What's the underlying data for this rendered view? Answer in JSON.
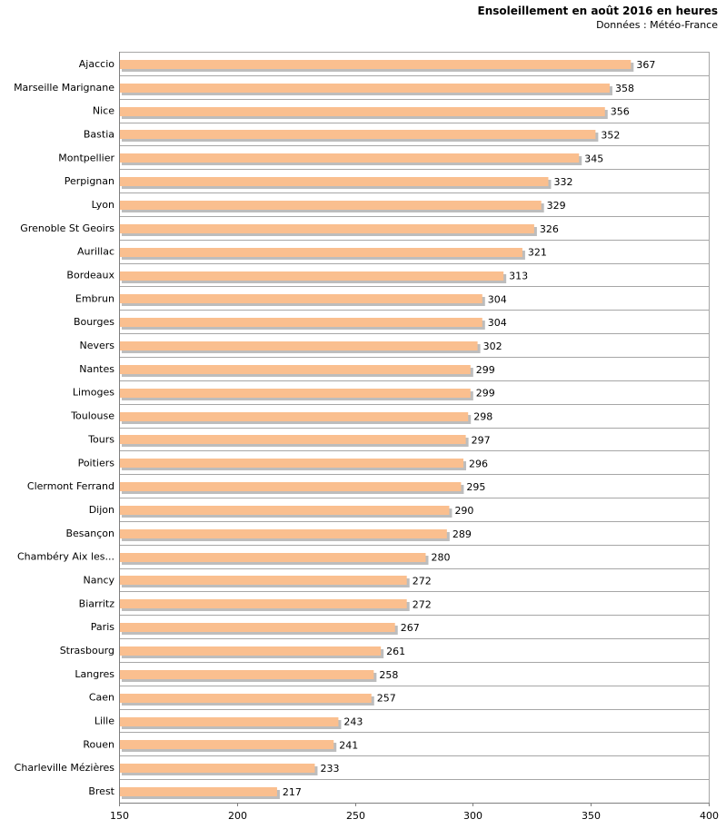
{
  "chart_data": {
    "type": "bar",
    "orientation": "horizontal",
    "title": "Ensoleillement en août 2016 en heures",
    "subtitle": "Données : Météo-France",
    "xlabel": "",
    "ylabel": "",
    "xlim": [
      150,
      400
    ],
    "xticks": [
      150,
      200,
      250,
      300,
      350,
      400
    ],
    "grid": true,
    "bar_color": "#fabf8f",
    "bar_shadow_color": "#bdbdbd",
    "grid_color": "#a6a6a6",
    "categories": [
      "Ajaccio",
      "Marseille Marignane",
      "Nice",
      "Bastia",
      "Montpellier",
      "Perpignan",
      "Lyon",
      "Grenoble St Geoirs",
      "Aurillac",
      "Bordeaux",
      "Embrun",
      "Bourges",
      "Nevers",
      "Nantes",
      "Limoges",
      "Toulouse",
      "Tours",
      "Poitiers",
      "Clermont Ferrand",
      "Dijon",
      "Besançon",
      "Chambéry Aix les...",
      "Nancy",
      "Biarritz",
      "Paris",
      "Strasbourg",
      "Langres",
      "Caen",
      "Lille",
      "Rouen",
      "Charleville Mézières",
      "Brest"
    ],
    "values": [
      367,
      358,
      356,
      352,
      345,
      332,
      329,
      326,
      321,
      313,
      304,
      304,
      302,
      299,
      299,
      298,
      297,
      296,
      295,
      290,
      289,
      280,
      272,
      272,
      267,
      261,
      258,
      257,
      243,
      241,
      233,
      217
    ]
  }
}
